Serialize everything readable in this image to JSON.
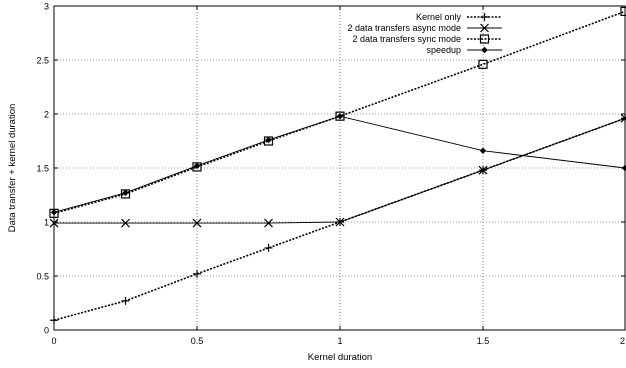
{
  "chart_data": {
    "type": "line",
    "title": "",
    "xlabel": "Kernel duration",
    "ylabel": "Data transfer + kernel duration",
    "xlim": [
      0,
      2
    ],
    "ylim": [
      0,
      3
    ],
    "xticks": [
      "0",
      "0.5",
      "1",
      "1.5",
      "2"
    ],
    "yticks": [
      "0",
      "0.5",
      "1",
      "1.5",
      "2",
      "2.5",
      "3"
    ],
    "grid": true,
    "legend_position": "top-right",
    "series": [
      {
        "name": "Kernel only",
        "marker": "plus",
        "line": "dotted",
        "x": [
          0,
          0.25,
          0.5,
          0.75,
          1,
          1.5,
          2
        ],
        "values": [
          0.09,
          0.27,
          0.52,
          0.76,
          1.0,
          1.48,
          1.96
        ]
      },
      {
        "name": "2 data transfers async mode",
        "marker": "cross",
        "line": "solid",
        "x": [
          0,
          0.25,
          0.5,
          0.75,
          1,
          1.5,
          2
        ],
        "values": [
          0.99,
          0.99,
          0.99,
          0.99,
          1.0,
          1.48,
          1.96
        ]
      },
      {
        "name": "2 data transfers sync mode",
        "marker": "square",
        "line": "dotted",
        "x": [
          0,
          0.25,
          0.5,
          0.75,
          1,
          1.5,
          2
        ],
        "values": [
          1.08,
          1.26,
          1.51,
          1.75,
          1.98,
          2.46,
          2.95
        ]
      },
      {
        "name": "speedup",
        "marker": "diamond",
        "line": "solid",
        "x": [
          0,
          0.25,
          0.5,
          0.75,
          1,
          1.5,
          2
        ],
        "values": [
          1.09,
          1.27,
          1.52,
          1.76,
          1.98,
          1.66,
          1.5
        ]
      }
    ]
  }
}
